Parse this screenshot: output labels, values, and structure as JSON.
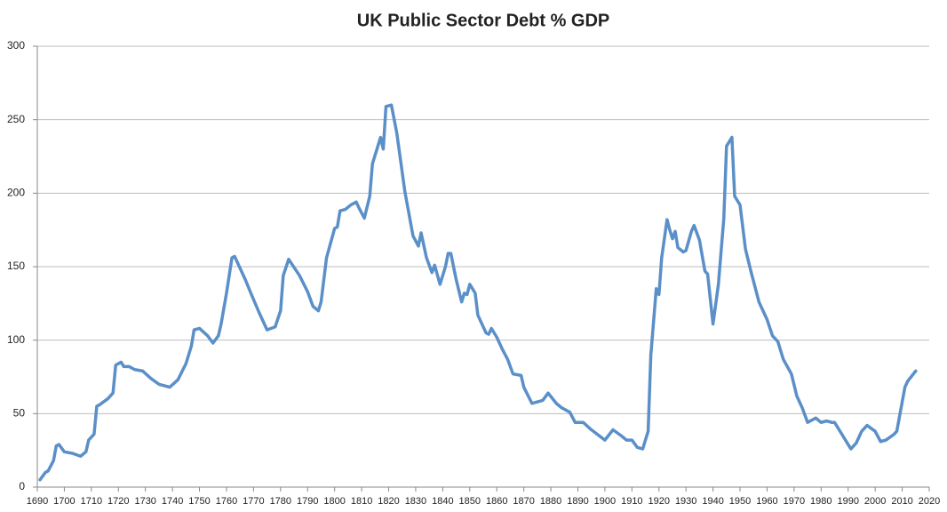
{
  "chart_data": {
    "type": "line",
    "title": "UK Public Sector Debt % GDP",
    "x": [
      1691,
      1693,
      1694,
      1696,
      1697,
      1698,
      1700,
      1703,
      1706,
      1708,
      1709,
      1711,
      1712,
      1713,
      1716,
      1718,
      1719,
      1721,
      1722,
      1724,
      1726,
      1729,
      1732,
      1735,
      1739,
      1742,
      1745,
      1747,
      1748,
      1750,
      1753,
      1755,
      1757,
      1758,
      1760,
      1762,
      1763,
      1767,
      1769,
      1772,
      1775,
      1778,
      1780,
      1781,
      1783,
      1787,
      1790,
      1792,
      1794,
      1795,
      1797,
      1800,
      1801,
      1802,
      1804,
      1806,
      1808,
      1809,
      1811,
      1813,
      1814,
      1816,
      1817,
      1818,
      1819,
      1821,
      1823,
      1826,
      1829,
      1831,
      1832,
      1834,
      1836,
      1837,
      1839,
      1841,
      1842,
      1843,
      1845,
      1847,
      1848,
      1849,
      1850,
      1852,
      1853,
      1856,
      1857,
      1858,
      1860,
      1862,
      1864,
      1866,
      1869,
      1870,
      1873,
      1877,
      1879,
      1882,
      1884,
      1887,
      1889,
      1892,
      1895,
      1900,
      1903,
      1906,
      1908,
      1910,
      1912,
      1914,
      1916,
      1917,
      1919,
      1920,
      1921,
      1923,
      1924,
      1925,
      1926,
      1927,
      1929,
      1930,
      1932,
      1933,
      1935,
      1937,
      1938,
      1940,
      1942,
      1944,
      1945,
      1947,
      1948,
      1950,
      1952,
      1954,
      1957,
      1960,
      1962,
      1964,
      1966,
      1969,
      1971,
      1973,
      1975,
      1978,
      1980,
      1982,
      1984,
      1985,
      1988,
      1990,
      1991,
      1993,
      1995,
      1997,
      2000,
      2002,
      2004,
      2007,
      2008,
      2011,
      2012,
      2015
    ],
    "series": [
      {
        "name": "UK Public Sector Debt % GDP",
        "color": "#5b8fc8",
        "values": [
          5,
          10,
          11,
          18,
          28,
          29,
          24,
          23,
          21,
          24,
          32,
          36,
          55,
          56,
          60,
          64,
          83,
          85,
          82,
          82,
          80,
          79,
          74,
          70,
          68,
          73,
          84,
          96,
          107,
          108,
          103,
          98,
          103,
          111,
          132,
          156,
          157,
          141,
          132,
          119,
          107,
          109,
          120,
          144,
          155,
          144,
          133,
          123,
          120,
          126,
          156,
          176,
          177,
          188,
          189,
          192,
          194,
          190,
          183,
          198,
          220,
          232,
          238,
          230,
          259,
          260,
          241,
          201,
          171,
          164,
          173,
          156,
          146,
          151,
          138,
          150,
          159,
          159,
          141,
          126,
          132,
          131,
          138,
          132,
          117,
          105,
          104,
          108,
          102,
          94,
          87,
          77,
          76,
          68,
          57,
          59,
          64,
          57,
          54,
          51,
          44,
          44,
          39,
          32,
          39,
          35,
          32,
          32,
          27,
          26,
          38,
          90,
          135,
          131,
          156,
          182,
          175,
          169,
          174,
          163,
          160,
          161,
          174,
          178,
          168,
          147,
          145,
          111,
          138,
          183,
          232,
          238,
          198,
          192,
          162,
          147,
          126,
          114,
          103,
          99,
          87,
          77,
          62,
          54,
          44,
          47,
          44,
          45,
          44,
          44,
          35,
          29,
          26,
          30,
          38,
          42,
          38,
          31,
          32,
          36,
          38,
          68,
          72,
          79
        ]
      }
    ],
    "xlim": [
      1690,
      2020
    ],
    "xticks": [
      1690,
      1700,
      1710,
      1720,
      1730,
      1740,
      1750,
      1760,
      1770,
      1780,
      1790,
      1800,
      1810,
      1820,
      1830,
      1840,
      1850,
      1860,
      1870,
      1880,
      1890,
      1900,
      1910,
      1920,
      1930,
      1940,
      1950,
      1960,
      1970,
      1980,
      1990,
      2000,
      2010,
      2020
    ],
    "ylim": [
      0,
      300
    ],
    "yticks": [
      0,
      50,
      100,
      150,
      200,
      250,
      300
    ],
    "grid": true
  }
}
